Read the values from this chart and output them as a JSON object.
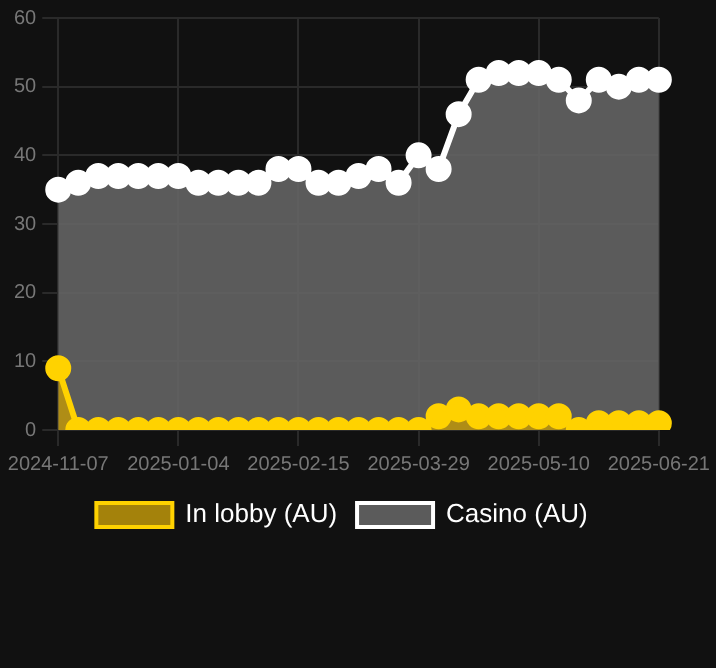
{
  "chart_data": {
    "type": "area",
    "categories": [
      "2024-11-07",
      null,
      null,
      null,
      null,
      null,
      "2025-01-04",
      null,
      null,
      null,
      null,
      null,
      "2025-02-15",
      null,
      null,
      null,
      null,
      null,
      "2025-03-29",
      null,
      null,
      null,
      null,
      null,
      "2025-05-10",
      null,
      null,
      null,
      null,
      null,
      "2025-06-21"
    ],
    "series": [
      {
        "name": "In lobby (AU)",
        "color": "#ffd200",
        "values": [
          9,
          0,
          0,
          0,
          0,
          0,
          0,
          0,
          0,
          0,
          0,
          0,
          0,
          0,
          0,
          0,
          0,
          0,
          0,
          2,
          3,
          2,
          2,
          2,
          2,
          2,
          0,
          1,
          1,
          1,
          1
        ]
      },
      {
        "name": "Casino (AU)",
        "color": "#ffffff",
        "values": [
          35,
          36,
          37,
          37,
          37,
          37,
          37,
          36,
          36,
          36,
          36,
          38,
          38,
          36,
          36,
          37,
          38,
          36,
          40,
          38,
          46,
          51,
          52,
          52,
          52,
          51,
          48,
          51,
          50,
          51,
          51
        ]
      }
    ],
    "ylim": [
      0,
      60
    ],
    "yticks": [
      0,
      10,
      20,
      30,
      40,
      50,
      60
    ],
    "grid": true,
    "legend": "bottom",
    "marker": "circle",
    "line_style": "solid"
  }
}
